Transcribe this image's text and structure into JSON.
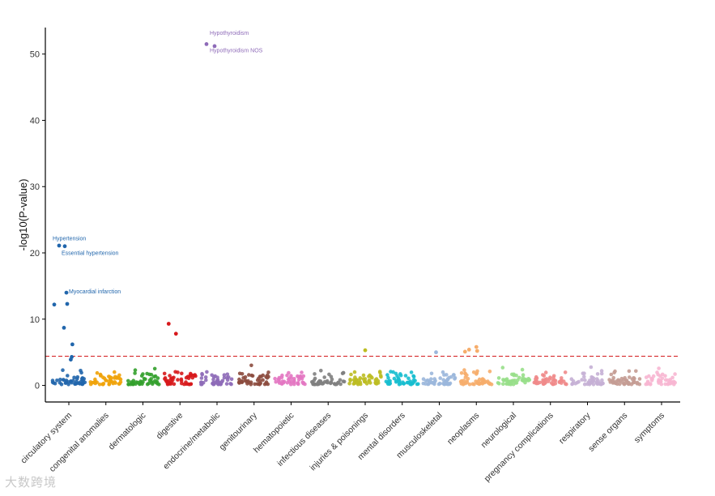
{
  "chart_data": {
    "type": "scatter",
    "title": "",
    "xlabel": "",
    "ylabel": "-log10(P-value)",
    "ylim": [
      -2.5,
      54
    ],
    "yticks": [
      0,
      10,
      20,
      30,
      40,
      50
    ],
    "threshold": 4.4,
    "threshold_color": "#d62728",
    "categories": [
      {
        "name": "circulatory system",
        "color": "#2166ac"
      },
      {
        "name": "congenital anomalies",
        "color": "#f0a30a"
      },
      {
        "name": "dermatologic",
        "color": "#33a02c"
      },
      {
        "name": "digestive",
        "color": "#d7191c"
      },
      {
        "name": "endocrine/metabolic",
        "color": "#8e6bb8"
      },
      {
        "name": "genitourinary",
        "color": "#8c4b3e"
      },
      {
        "name": "hematopoietic",
        "color": "#e377c2"
      },
      {
        "name": "infectious diseases",
        "color": "#7f7f7f"
      },
      {
        "name": "injuries & poisonings",
        "color": "#bcbd22"
      },
      {
        "name": "mental disorders",
        "color": "#17becf"
      },
      {
        "name": "musculoskeletal",
        "color": "#9bb7dc"
      },
      {
        "name": "neoplasms",
        "color": "#f6ad6b"
      },
      {
        "name": "neurological",
        "color": "#98df8a"
      },
      {
        "name": "pregnancy complications",
        "color": "#f08a8a"
      },
      {
        "name": "respiratory",
        "color": "#c5b0d5"
      },
      {
        "name": "sense organs",
        "color": "#c49c94"
      },
      {
        "name": "symptoms",
        "color": "#f7b6d2"
      }
    ],
    "points_per_category": 45,
    "top_hits": [
      {
        "category": 0,
        "pos": 0.1,
        "y": 12.2
      },
      {
        "category": 0,
        "pos": 0.4,
        "y": 21.1
      },
      {
        "category": 0,
        "pos": 0.7,
        "y": 8.7
      },
      {
        "category": 0,
        "pos": 0.75,
        "y": 21.0
      },
      {
        "category": 0,
        "pos": 0.85,
        "y": 14.0
      },
      {
        "category": 0,
        "pos": 0.9,
        "y": 12.3
      },
      {
        "category": 0,
        "pos": 1.12,
        "y": 3.9
      },
      {
        "category": 0,
        "pos": 1.18,
        "y": 4.3
      },
      {
        "category": 0,
        "pos": 1.22,
        "y": 6.2
      },
      {
        "category": 3,
        "pos": 0.3,
        "y": 9.3
      },
      {
        "category": 3,
        "pos": 0.75,
        "y": 7.8
      },
      {
        "category": 4,
        "pos": 0.35,
        "y": 51.5
      },
      {
        "category": 4,
        "pos": 0.85,
        "y": 51.2
      },
      {
        "category": 8,
        "pos": 1.0,
        "y": 5.3
      },
      {
        "category": 10,
        "pos": 0.8,
        "y": 5.0
      },
      {
        "category": 11,
        "pos": 0.3,
        "y": 5.1
      },
      {
        "category": 11,
        "pos": 0.55,
        "y": 5.4
      },
      {
        "category": 11,
        "pos": 1.0,
        "y": 5.8
      },
      {
        "category": 11,
        "pos": 1.05,
        "y": 5.2
      }
    ],
    "annotations": [
      {
        "text": "Hypothyroidism",
        "category": 4,
        "pos": 0.55,
        "y": 52.9,
        "color": "#8e6bb8"
      },
      {
        "text": "Hypothyroidism NOS",
        "category": 4,
        "pos": 0.55,
        "y": 50.3,
        "color": "#8e6bb8"
      },
      {
        "text": "Hypertension",
        "category": 0,
        "pos": 0.0,
        "y": 21.9,
        "color": "#2166ac"
      },
      {
        "text": "Essential hypertension",
        "category": 0,
        "pos": 0.55,
        "y": 19.7,
        "color": "#2166ac"
      },
      {
        "text": "Myocardial infarction",
        "category": 0,
        "pos": 1.0,
        "y": 13.9,
        "color": "#2166ac"
      }
    ]
  },
  "watermark": "大数跨境"
}
